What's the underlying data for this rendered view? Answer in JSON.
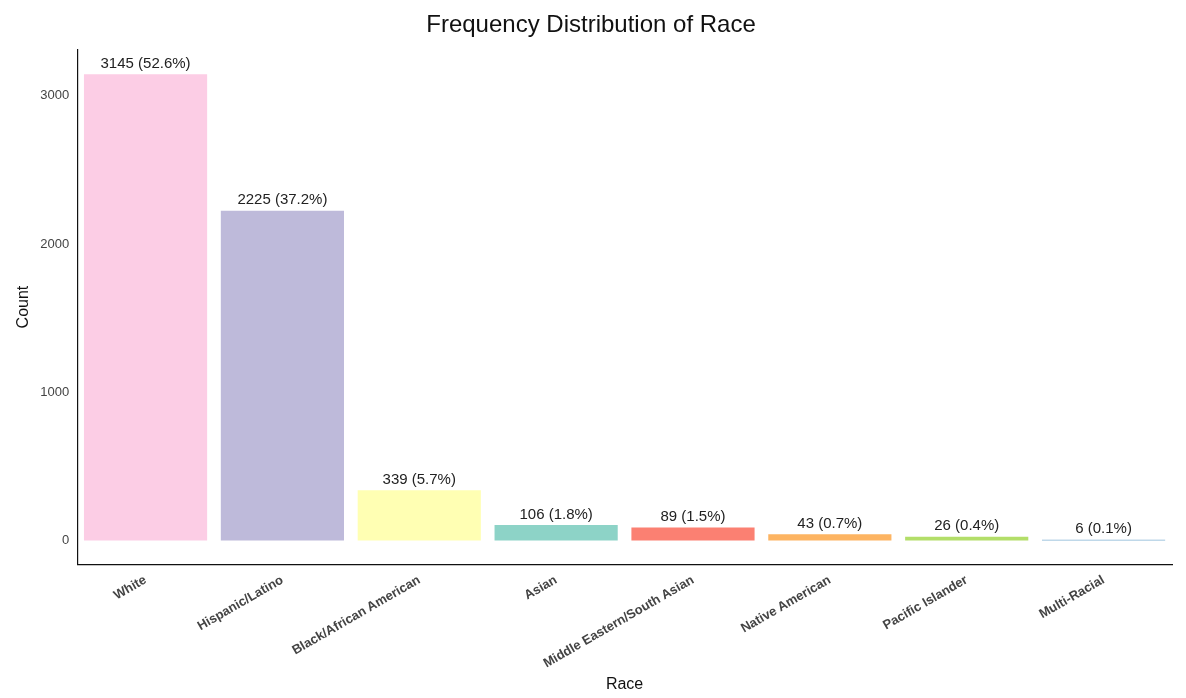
{
  "chart_data": {
    "type": "bar",
    "title": "Frequency Distribution of Race",
    "xlabel": "Race",
    "ylabel": "Count",
    "categories": [
      "White",
      "Hispanic/Latino",
      "Black/African American",
      "Asian",
      "Middle Eastern/South Asian",
      "Native American",
      "Pacific Islander",
      "Multi-Racial"
    ],
    "values": [
      3145,
      2225,
      339,
      106,
      89,
      43,
      26,
      6
    ],
    "colors": [
      "#fccde5",
      "#bebada",
      "#ffffb3",
      "#8dd3c7",
      "#fb8072",
      "#fdb462",
      "#b3de69",
      "#80b1d3"
    ],
    "value_labels": [
      "3145 (52.6%)",
      "2225 (37.2%)",
      "339 (5.7%)",
      "106 (1.8%)",
      "89 (1.5%)",
      "43 (0.7%)",
      "26 (0.4%)",
      "6 (0.1%)"
    ],
    "ylim": [
      -160,
      3310
    ],
    "yticks": [
      0,
      1000,
      2000,
      3000
    ],
    "grid": false,
    "legend": false
  }
}
